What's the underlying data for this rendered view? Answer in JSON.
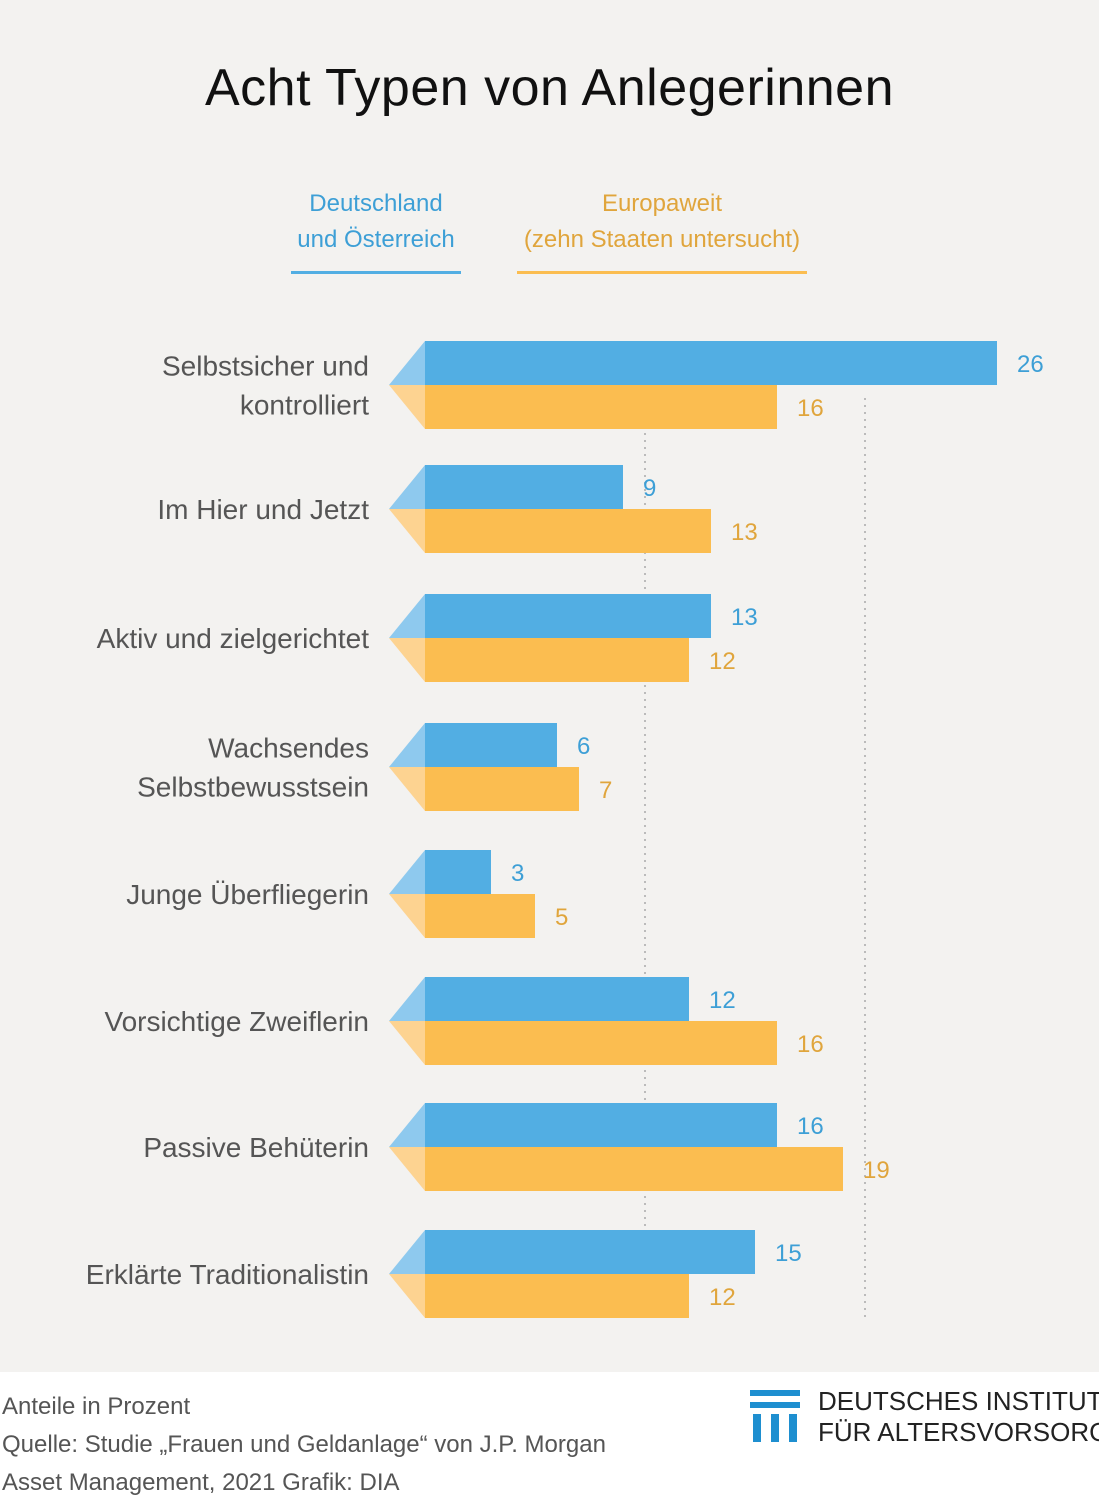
{
  "colors": {
    "series_de": "#52aee3",
    "series_de_light": "#8ec9ee",
    "series_eu": "#fbbd50",
    "series_eu_light": "#fdd391",
    "label_de": "#3d9fd6",
    "label_eu": "#e0a53c",
    "category_text": "#555555",
    "gridline": "#bbbbbb"
  },
  "chart_data": {
    "type": "bar",
    "orientation": "horizontal",
    "title": "Acht Typen von Anlegerinnen",
    "categories": [
      [
        "Selbstsicher und",
        "kontrolliert"
      ],
      [
        "Im Hier und Jetzt"
      ],
      [
        "Aktiv und zielgerichtet"
      ],
      [
        "Wachsendes",
        "Selbstbewusstsein"
      ],
      [
        "Junge Überfliegerin"
      ],
      [
        "Vorsichtige Zweiflerin"
      ],
      [
        "Passive Behüterin"
      ],
      [
        "Erklärte Traditionalistin"
      ]
    ],
    "series": [
      {
        "name_lines": [
          "Deutschland",
          "und Österreich"
        ],
        "values": [
          26,
          9,
          13,
          6,
          3,
          12,
          16,
          15
        ]
      },
      {
        "name_lines": [
          "Europaweit",
          "(zehn Staaten untersucht)"
        ],
        "values": [
          16,
          13,
          12,
          7,
          5,
          16,
          19,
          12
        ]
      }
    ],
    "xlim": [
      0,
      26
    ],
    "gridlines_x": [
      10,
      20
    ],
    "unit_note": "Anteile in Prozent"
  },
  "footer": {
    "unit_note": "Anteile in Prozent",
    "source_line1": "Quelle: Studie „Frauen und Geldanlage“ von J.P. Morgan",
    "source_line2": "Asset Management, 2021  Grafik: DIA"
  },
  "logo": {
    "line1": "DEUTSCHES INSTITUT",
    "line2": "FÜR ALTERSVORSORGE"
  }
}
